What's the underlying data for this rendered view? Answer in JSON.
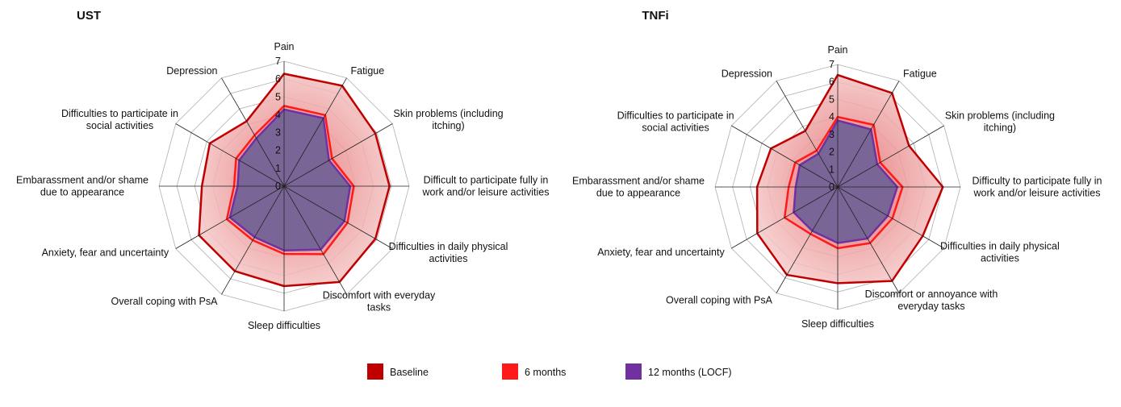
{
  "chart_data": [
    {
      "type": "radar",
      "title": "UST",
      "categories": [
        [
          "Pain"
        ],
        [
          "Fatigue"
        ],
        [
          "Skin problems (including",
          "itching)"
        ],
        [
          "Difficult to participate fully in",
          "work and/or leisure activities"
        ],
        [
          "Difficulties in daily physical",
          "activities"
        ],
        [
          "Discomfort  with everyday",
          "tasks"
        ],
        [
          "Sleep difficulties"
        ],
        [
          "Overall coping with PsA"
        ],
        [
          "Anxiety, fear and uncertainty"
        ],
        [
          "Embarassment and/or shame",
          "due to appearance"
        ],
        [
          "Difficulties to participate in",
          "social activities"
        ],
        [
          "Depression"
        ]
      ],
      "ylim": [
        0,
        7
      ],
      "yticks": [
        0,
        1,
        2,
        3,
        4,
        5,
        6,
        7
      ],
      "series": [
        {
          "name": "Baseline",
          "color": "#c00000",
          "values": [
            6.3,
            6.5,
            5.9,
            5.9,
            5.9,
            6.2,
            5.6,
            5.5,
            5.5,
            4.6,
            4.8,
            4.2
          ]
        },
        {
          "name": "6 months",
          "color": "#ff1a1a",
          "values": [
            4.5,
            4.6,
            3.1,
            3.9,
            4.1,
            4.4,
            3.8,
            3.5,
            3.7,
            2.8,
            3.1,
            3.3
          ]
        },
        {
          "name": "12 months (LOCF)",
          "color": "#7030a0",
          "values": [
            4.3,
            4.4,
            2.9,
            3.7,
            3.9,
            4.1,
            3.6,
            3.3,
            3.5,
            2.6,
            2.9,
            3.1
          ]
        }
      ]
    },
    {
      "type": "radar",
      "title": "TNFi",
      "categories": [
        [
          "Pain"
        ],
        [
          "Fatigue"
        ],
        [
          "Skin problems (including",
          "itching)"
        ],
        [
          "Difficulty to participate fully in",
          "work and/or leisure activities"
        ],
        [
          "Difficulties in daily physical",
          "activities"
        ],
        [
          "Discomfort or annoyance with",
          "everyday tasks"
        ],
        [
          "Sleep difficulties"
        ],
        [
          "Overall coping with PsA"
        ],
        [
          "Anxiety, fear and uncertainty"
        ],
        [
          "Embarassment and/or shame",
          "due to appearance"
        ],
        [
          "Difficulties to participate in",
          "social activities"
        ],
        [
          "Depression"
        ]
      ],
      "ylim": [
        0,
        7
      ],
      "yticks": [
        0,
        1,
        2,
        3,
        4,
        5,
        6,
        7
      ],
      "series": [
        {
          "name": "Baseline",
          "color": "#c00000",
          "values": [
            6.4,
            6.2,
            4.7,
            6.0,
            5.6,
            6.2,
            5.5,
            5.8,
            5.3,
            4.6,
            4.4,
            3.7
          ]
        },
        {
          "name": "6 months",
          "color": "#ff1a1a",
          "values": [
            4.0,
            4.1,
            2.8,
            3.7,
            3.6,
            3.7,
            3.5,
            3.1,
            3.5,
            2.8,
            2.8,
            2.4
          ]
        },
        {
          "name": "12 months (LOCF)",
          "color": "#7030a0",
          "values": [
            3.8,
            3.8,
            2.6,
            3.4,
            3.3,
            3.4,
            3.2,
            2.9,
            2.9,
            2.4,
            2.5,
            2.2
          ]
        }
      ]
    }
  ]
}
